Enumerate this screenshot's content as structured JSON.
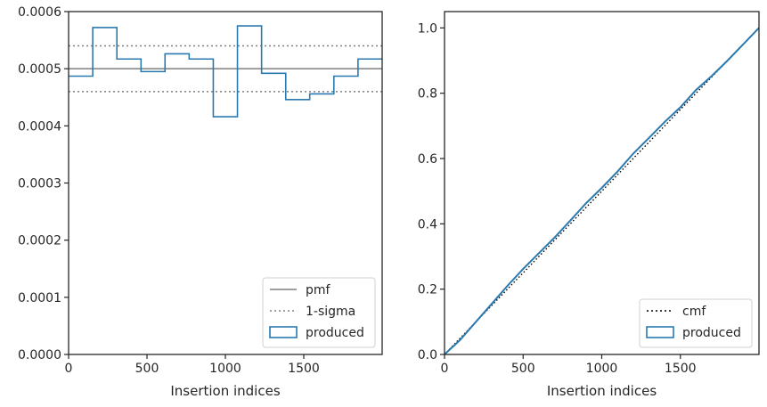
{
  "chart_data": [
    {
      "type": "line",
      "xlabel": "Insertion indices",
      "ylabel": "",
      "xlim": [
        0,
        2000
      ],
      "ylim": [
        0,
        0.0006
      ],
      "xticks": [
        0,
        500,
        1000,
        1500
      ],
      "xtick_labels": [
        "0",
        "500",
        "1000",
        "1500"
      ],
      "yticks": [
        0,
        0.0001,
        0.0002,
        0.0003,
        0.0004,
        0.0005,
        0.0006
      ],
      "ytick_labels": [
        "0.0000",
        "0.0001",
        "0.0002",
        "0.0003",
        "0.0004",
        "0.0005",
        "0.0006"
      ],
      "hlines": [
        {
          "label": "pmf",
          "y": 0.0005,
          "style": "solid",
          "color": "#7f7f7f"
        },
        {
          "label": "1-sigma",
          "y": 0.00054,
          "style": "dotted",
          "color": "#7f7f7f"
        },
        {
          "label": "",
          "y": 0.00046,
          "style": "dotted",
          "color": "#7f7f7f"
        }
      ],
      "histogram": {
        "name": "produced",
        "color": "#2a7ab0",
        "bin_edges": [
          0,
          154,
          308,
          462,
          615,
          769,
          923,
          1077,
          1231,
          1385,
          1538,
          1692,
          1846,
          2000
        ],
        "values": [
          0.000487,
          0.000572,
          0.000517,
          0.000495,
          0.000526,
          0.000517,
          0.000416,
          0.000575,
          0.000492,
          0.000446,
          0.000456,
          0.000487,
          0.000517
        ]
      },
      "legend": {
        "position": "lower-right",
        "entries": [
          {
            "label": "pmf",
            "kind": "solid"
          },
          {
            "label": "1-sigma",
            "kind": "dotted"
          },
          {
            "label": "produced",
            "kind": "patch"
          }
        ]
      }
    },
    {
      "type": "line",
      "xlabel": "Insertion indices",
      "ylabel": "",
      "xlim": [
        0,
        2000
      ],
      "ylim": [
        0,
        1.05
      ],
      "xticks": [
        0,
        500,
        1000,
        1500
      ],
      "xtick_labels": [
        "0",
        "500",
        "1000",
        "1500"
      ],
      "yticks": [
        0,
        0.2,
        0.4,
        0.6,
        0.8,
        1.0
      ],
      "ytick_labels": [
        "0.0",
        "0.2",
        "0.4",
        "0.6",
        "0.8",
        "1.0"
      ],
      "cmf": {
        "name": "cmf",
        "x": [
          0,
          2000
        ],
        "y": [
          0,
          1.0
        ],
        "style": "dotted",
        "color": "#000000"
      },
      "produced": {
        "name": "produced",
        "color": "#2a7ab0",
        "x": [
          0,
          100,
          200,
          300,
          400,
          500,
          600,
          700,
          800,
          900,
          1000,
          1100,
          1200,
          1300,
          1400,
          1500,
          1600,
          1700,
          1800,
          1900,
          2000
        ],
        "y": [
          0,
          0.045,
          0.1,
          0.155,
          0.21,
          0.262,
          0.31,
          0.358,
          0.41,
          0.463,
          0.51,
          0.56,
          0.615,
          0.663,
          0.712,
          0.757,
          0.81,
          0.853,
          0.9,
          0.95,
          1.0
        ]
      },
      "legend": {
        "position": "lower-right",
        "entries": [
          {
            "label": "cmf",
            "kind": "dotted"
          },
          {
            "label": "produced",
            "kind": "patch"
          }
        ]
      }
    }
  ]
}
